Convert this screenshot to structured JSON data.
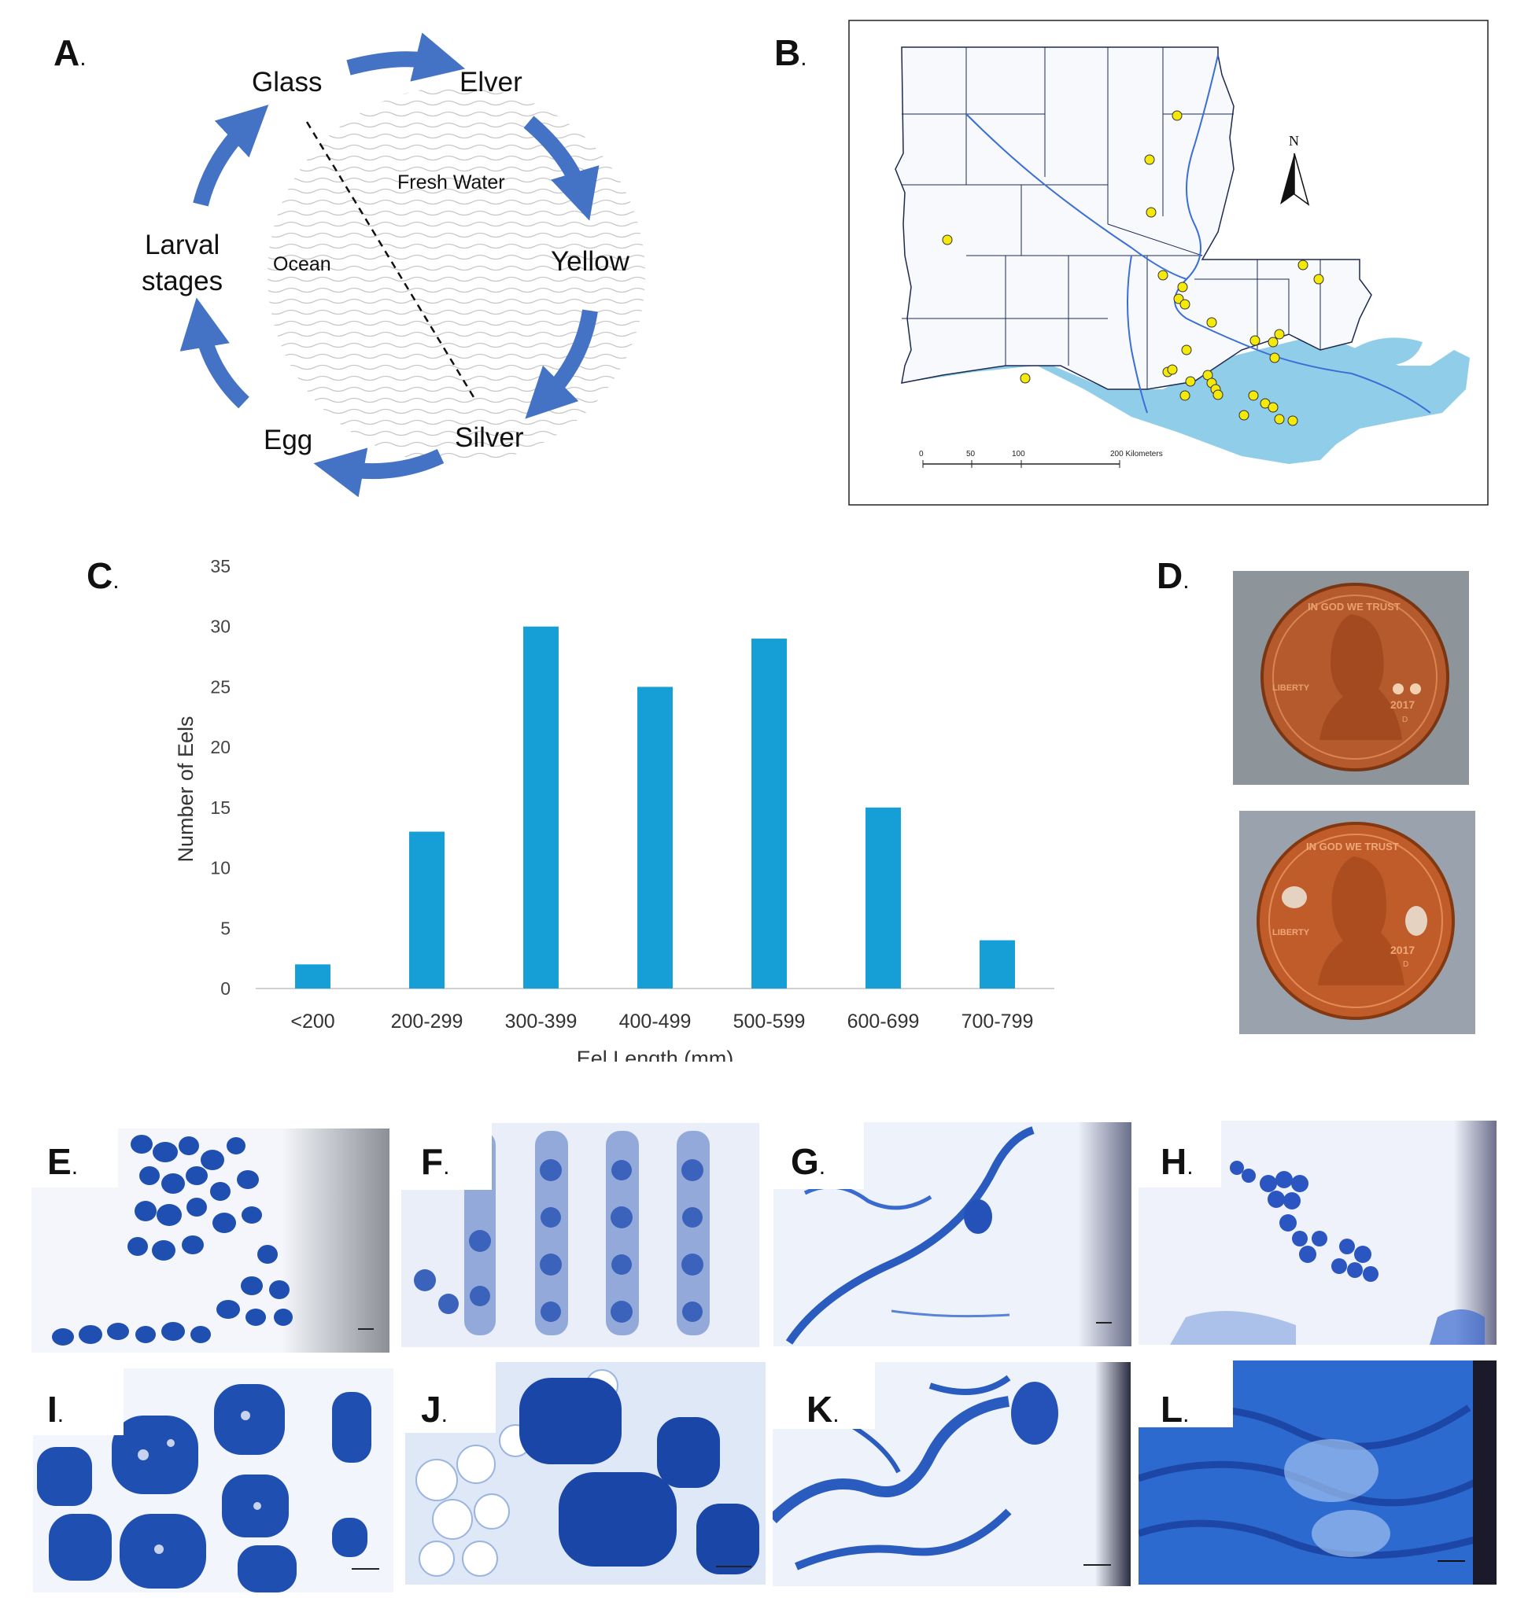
{
  "panels": {
    "a": {
      "letter": "A",
      "dot": "."
    },
    "b": {
      "letter": "B",
      "dot": "."
    },
    "c": {
      "letter": "C",
      "dot": "."
    },
    "d": {
      "letter": "D",
      "dot": "."
    },
    "e": {
      "letter": "E",
      "dot": "."
    },
    "f": {
      "letter": "F",
      "dot": "."
    },
    "g": {
      "letter": "G",
      "dot": "."
    },
    "h": {
      "letter": "H",
      "dot": "."
    },
    "i": {
      "letter": "I",
      "dot": "."
    },
    "j": {
      "letter": "J",
      "dot": "."
    },
    "k": {
      "letter": "K",
      "dot": "."
    },
    "l": {
      "letter": "L",
      "dot": "."
    }
  },
  "lifecycle": {
    "stages": {
      "glass": "Glass",
      "elver": "Elver",
      "yellow": "Yellow",
      "silver": "Silver",
      "egg": "Egg",
      "larval_1": "Larval",
      "larval_2": "stages"
    },
    "zones": {
      "fresh": "Fresh Water",
      "ocean": "Ocean"
    },
    "arrow_color": "#4472c4"
  },
  "map": {
    "north_label": "N",
    "scale_ticks": [
      "0",
      "50",
      "100",
      "200 Kilometers"
    ],
    "water_color": "#8fcde8",
    "site_color": "#f5e90a"
  },
  "chart_data": {
    "type": "bar",
    "categories": [
      "<200",
      "200-299",
      "300-399",
      "400-499",
      "500-599",
      "600-699",
      "700-799"
    ],
    "values": [
      2,
      13,
      30,
      25,
      29,
      15,
      4
    ],
    "xlabel": "Eel Length (mm)",
    "ylabel": "Number of Eels",
    "ylim": [
      0,
      35
    ],
    "yticks": [
      "0",
      "5",
      "10",
      "15",
      "20",
      "25",
      "30",
      "35"
    ],
    "grid": false,
    "bar_color": "#169fd6"
  },
  "coins": {
    "top": {
      "motto": "IN GOD WE TRUST",
      "liberty": "LIBERTY",
      "year": "2017",
      "mint": "D"
    },
    "bottom": {
      "motto": "IN GOD WE TRUST",
      "liberty": "LIBERTY",
      "year": "2017",
      "mint": "D"
    }
  },
  "stain_color": "#1f4fb0"
}
